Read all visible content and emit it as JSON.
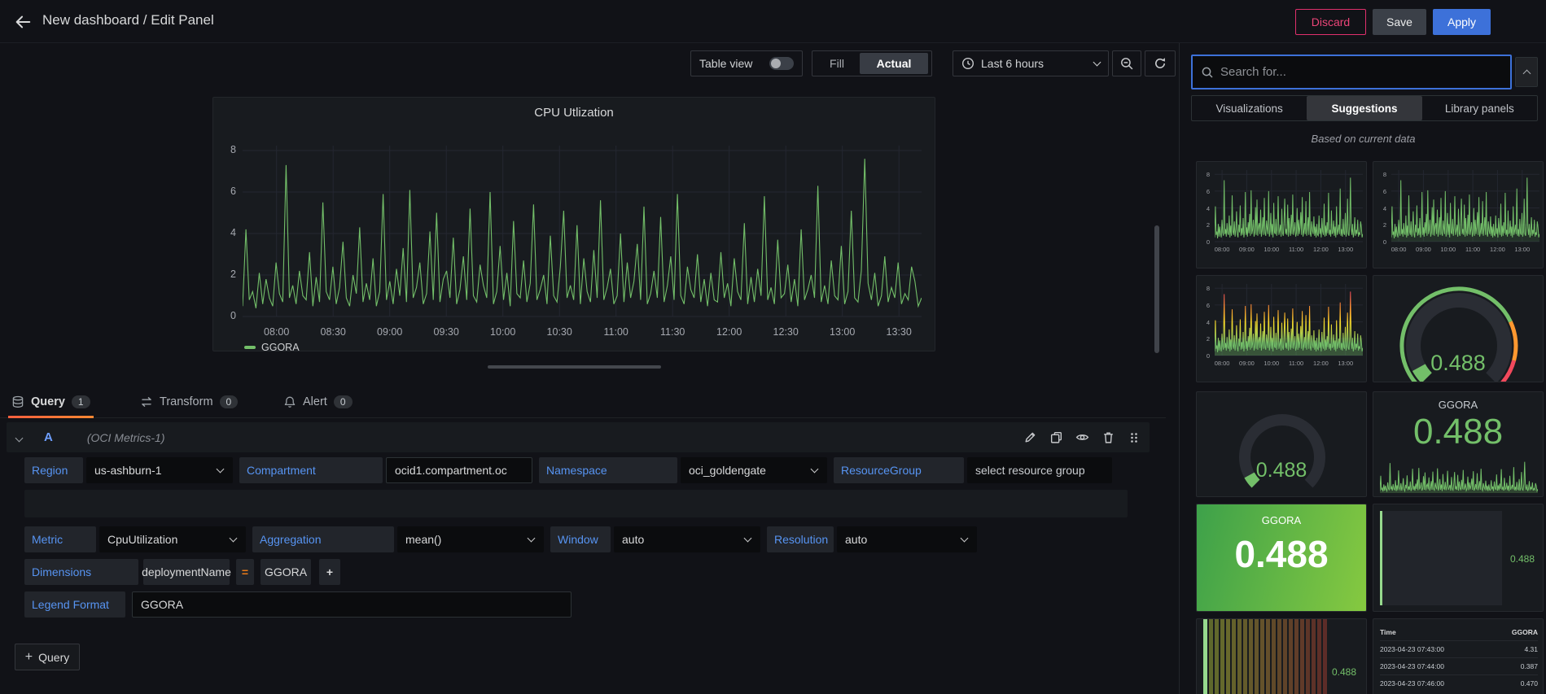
{
  "header": {
    "title": "New dashboard / Edit Panel",
    "discard": "Discard",
    "save": "Save",
    "apply": "Apply"
  },
  "toolbar": {
    "table_view": "Table view",
    "fill": "Fill",
    "actual": "Actual",
    "time_range": "Last 6 hours"
  },
  "editor_tabs": {
    "query": "Query",
    "query_count": "1",
    "transform": "Transform",
    "transform_count": "0",
    "alert": "Alert",
    "alert_count": "0"
  },
  "query": {
    "ref_id": "A",
    "datasource": "(OCI Metrics-1)",
    "region_label": "Region",
    "region_value": "us-ashburn-1",
    "compartment_label": "Compartment",
    "compartment_value": "ocid1.compartment.oc",
    "namespace_label": "Namespace",
    "namespace_value": "oci_goldengate",
    "resource_group_label": "ResourceGroup",
    "resource_group_placeholder": "select resource group",
    "metric_label": "Metric",
    "metric_value": "CpuUtilization",
    "aggregation_label": "Aggregation",
    "aggregation_value": "mean()",
    "window_label": "Window",
    "window_value": "auto",
    "resolution_label": "Resolution",
    "resolution_value": "auto",
    "dimensions_label": "Dimensions",
    "dimension_key": "deploymentName",
    "dimension_op": "=",
    "dimension_value": "GGORA",
    "legend_format_label": "Legend Format",
    "legend_format_value": "GGORA",
    "add_query": "Query"
  },
  "sidebar": {
    "search_placeholder": "Search for...",
    "tab_visualizations": "Visualizations",
    "tab_suggestions": "Suggestions",
    "tab_library": "Library panels",
    "subtitle": "Based on current data",
    "stat_title": "GGORA",
    "stat_value": "0.488"
  },
  "icons": {
    "back-arrow": "←",
    "search": "⌕",
    "clock": "◷",
    "zoom-out": "⊖",
    "refresh": "⟳",
    "chevron-down": "⌄",
    "chevron-up": "⌃",
    "edit": "✎",
    "copy": "⧉",
    "eye": "👁",
    "trash": "🗑",
    "drag": "⠿",
    "database": "⛁",
    "transform": "⇄",
    "alert-bell": "🔔",
    "plus": "+",
    "equals": "="
  },
  "colors": {
    "green": "#73bf69",
    "orange": "#ff9830",
    "red": "#f2495c",
    "blue": "#3d71d9",
    "label_blue": "#5794f2",
    "gauge_track": "#2a2d34"
  },
  "chart_data": [
    {
      "type": "line",
      "title": "CPU Utlization",
      "ylabel": "",
      "ylim": [
        0,
        8.4
      ],
      "y_ticks": [
        8,
        6,
        4,
        2,
        0
      ],
      "x_ticks": [
        "08:00",
        "08:30",
        "09:00",
        "09:30",
        "10:00",
        "10:30",
        "11:00",
        "11:30",
        "12:00",
        "12:30",
        "13:00",
        "13:30"
      ],
      "mini_x_ticks": [
        "08:00",
        "09:00",
        "10:00",
        "11:00",
        "12:00",
        "13:00"
      ],
      "legend_position": "bottom",
      "grid": true,
      "series": [
        {
          "name": "GGORA",
          "color": "#73bf69",
          "values": [
            0.5,
            4.2,
            0.8,
            1.2,
            0.4,
            2.1,
            0.6,
            1.8,
            0.9,
            0.5,
            2.6,
            1.1,
            0.7,
            7.3,
            0.9,
            1.5,
            0.6,
            2.2,
            1.0,
            0.8,
            3.1,
            0.5,
            1.9,
            0.7,
            5.5,
            1.2,
            0.8,
            2.4,
            0.6,
            1.4,
            3.6,
            0.9,
            0.5,
            2.0,
            1.1,
            4.3,
            0.7,
            1.6,
            0.8,
            2.8,
            0.5,
            1.2,
            5.9,
            0.8,
            1.7,
            0.6,
            2.3,
            1.0,
            3.3,
            0.7,
            6.1,
            0.9,
            1.4,
            2.6,
            0.6,
            1.1,
            4.1,
            0.8,
            5.0,
            0.7,
            1.8,
            2.2,
            0.9,
            3.8,
            0.6,
            1.3,
            2.9,
            0.8,
            5.2,
            1.0,
            0.7,
            2.5,
            1.5,
            0.9,
            6.0,
            0.6,
            1.2,
            3.4,
            0.8,
            2.1,
            0.5,
            4.6,
            1.1,
            0.9,
            2.7,
            0.7,
            1.6,
            5.4,
            0.8,
            1.3,
            2.0,
            0.6,
            3.9,
            1.0,
            0.7,
            2.4,
            5.1,
            0.9,
            1.5,
            0.8,
            4.4,
            0.6,
            2.8,
            1.2,
            0.7,
            3.2,
            0.9,
            5.6,
            0.8,
            1.4,
            2.3,
            0.6,
            1.0,
            4.0,
            0.7,
            2.6,
            0.9,
            1.7,
            3.5,
            0.8,
            5.3,
            0.6,
            1.1,
            2.2,
            0.9,
            4.8,
            0.7,
            1.5,
            2.9,
            0.8,
            5.9,
            1.0,
            0.6,
            2.4,
            1.3,
            0.9,
            3.0,
            0.7,
            1.8,
            0.5,
            2.1,
            0.8,
            0.7,
            3.1,
            0.9,
            1.6,
            0.5,
            2.8,
            1.2,
            0.8,
            4.5,
            0.6,
            1.9,
            0.7,
            2.3,
            1.0,
            5.8,
            0.8,
            1.4,
            0.6,
            3.7,
            0.9,
            1.1,
            2.5,
            0.7,
            1.8,
            0.5,
            4.2,
            0.8,
            1.3,
            2.0,
            0.9,
            6.3,
            0.7,
            1.5,
            0.6,
            2.7,
            1.0,
            0.8,
            3.4,
            0.6,
            1.2,
            5.1,
            0.9,
            0.7,
            2.2,
            7.6,
            1.6,
            0.8,
            2.1,
            0.5,
            1.0,
            2.9,
            0.7,
            1.4,
            0.9,
            2.6,
            0.6,
            1.1,
            0.8,
            2.4,
            1.7,
            0.5,
            0.9
          ]
        }
      ]
    },
    {
      "type": "gauge",
      "title": "GGORA",
      "value": 0.488,
      "min": 0,
      "max": 8,
      "thresholds": [
        "#73bf69",
        "#ff9830",
        "#f2495c"
      ]
    },
    {
      "type": "stat",
      "title": "GGORA",
      "value": 0.488
    },
    {
      "type": "table",
      "columns": [
        "Time",
        "GGORA"
      ],
      "rows": [
        [
          "2023-04-23 07:43:00",
          "4.31"
        ],
        [
          "2023-04-23 07:44:00",
          "0.387"
        ],
        [
          "2023-04-23 07:46:00",
          "0.470"
        ]
      ]
    }
  ]
}
